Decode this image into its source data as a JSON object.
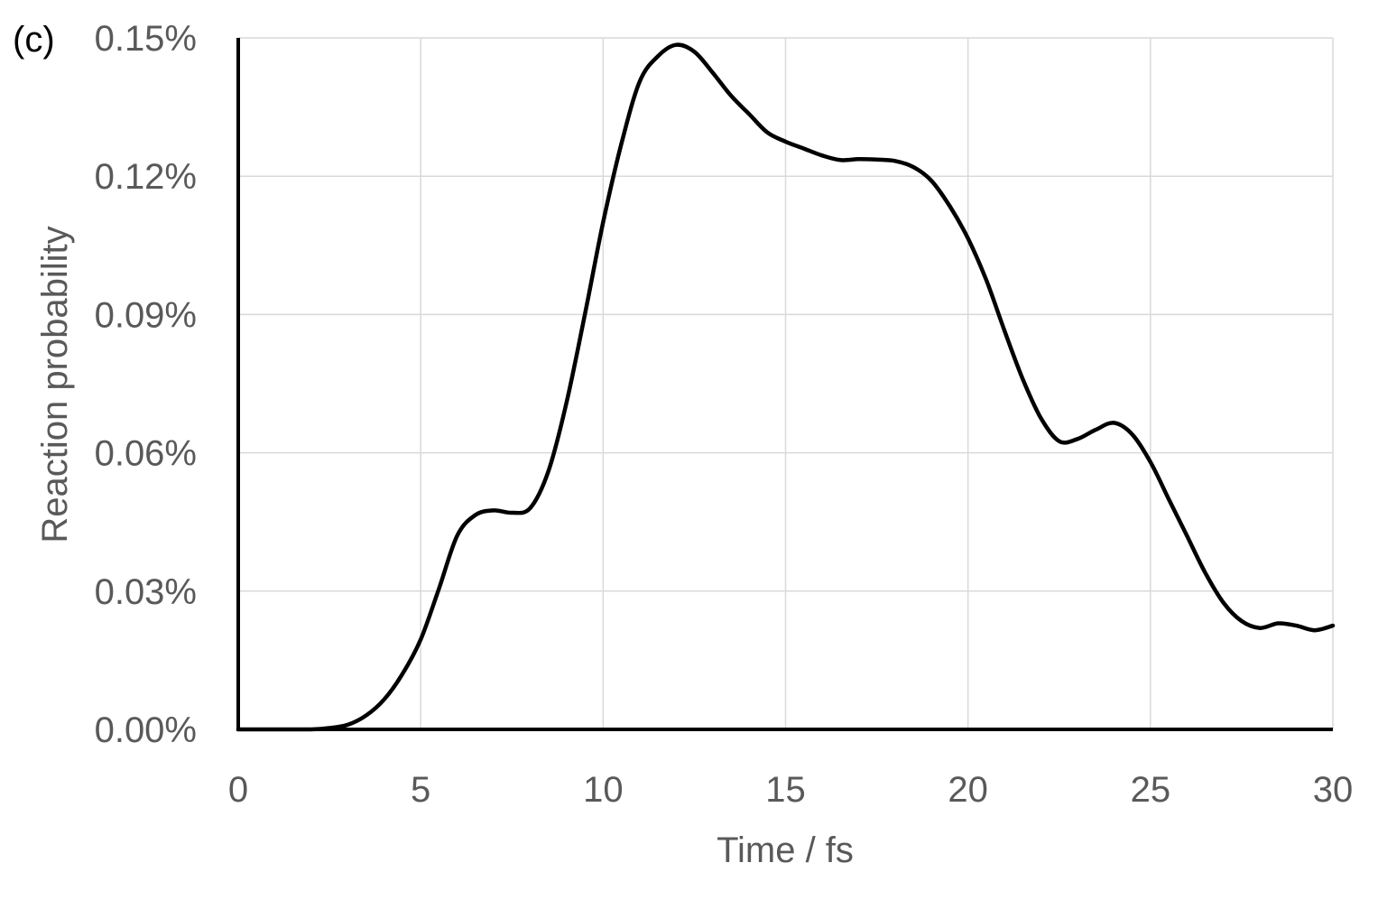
{
  "chart_data": {
    "type": "line",
    "panel_label": "(c)",
    "xlabel": "Time / fs",
    "ylabel": "Reaction probability",
    "xlim": [
      0,
      30
    ],
    "ylim": [
      0,
      0.15
    ],
    "x_ticks": [
      0,
      5,
      10,
      15,
      20,
      25,
      30
    ],
    "x_tick_labels": [
      "0",
      "5",
      "10",
      "15",
      "20",
      "25",
      "30"
    ],
    "y_ticks": [
      0,
      0.03,
      0.06,
      0.09,
      0.12,
      0.15
    ],
    "y_tick_labels": [
      "0.00%",
      "0.03%",
      "0.06%",
      "0.09%",
      "0.12%",
      "0.15%"
    ],
    "grid": true,
    "colors": {
      "line": "#000000",
      "grid": "#d9d9d9",
      "axis": "#000000",
      "text": "#595959"
    },
    "series": [
      {
        "x": [
          0,
          1,
          2,
          2.5,
          3,
          3.5,
          4,
          4.5,
          5,
          5.5,
          6,
          6.5,
          7,
          7.5,
          8,
          8.5,
          9,
          9.5,
          10,
          10.5,
          11,
          11.5,
          12,
          12.5,
          13,
          13.5,
          14,
          14.5,
          15,
          15.5,
          16,
          16.5,
          17,
          17.5,
          18,
          18.5,
          19,
          19.5,
          20,
          20.5,
          21,
          21.5,
          22,
          22.5,
          23,
          23.5,
          24,
          24.5,
          25,
          25.5,
          26,
          26.5,
          27,
          27.5,
          28,
          28.5,
          29,
          29.5,
          30
        ],
        "y": [
          0,
          0,
          0,
          0.0003,
          0.001,
          0.003,
          0.0065,
          0.012,
          0.0195,
          0.0305,
          0.042,
          0.0465,
          0.0475,
          0.047,
          0.048,
          0.056,
          0.071,
          0.09,
          0.11,
          0.127,
          0.1405,
          0.146,
          0.1485,
          0.147,
          0.1425,
          0.1375,
          0.1335,
          0.1295,
          0.1275,
          0.126,
          0.1245,
          0.1235,
          0.1237,
          0.1236,
          0.1233,
          0.122,
          0.119,
          0.1135,
          0.1065,
          0.0975,
          0.0865,
          0.076,
          0.0675,
          0.0625,
          0.063,
          0.065,
          0.0665,
          0.064,
          0.058,
          0.05,
          0.042,
          0.034,
          0.0275,
          0.0235,
          0.022,
          0.023,
          0.0225,
          0.0215,
          0.0225
        ]
      }
    ]
  }
}
